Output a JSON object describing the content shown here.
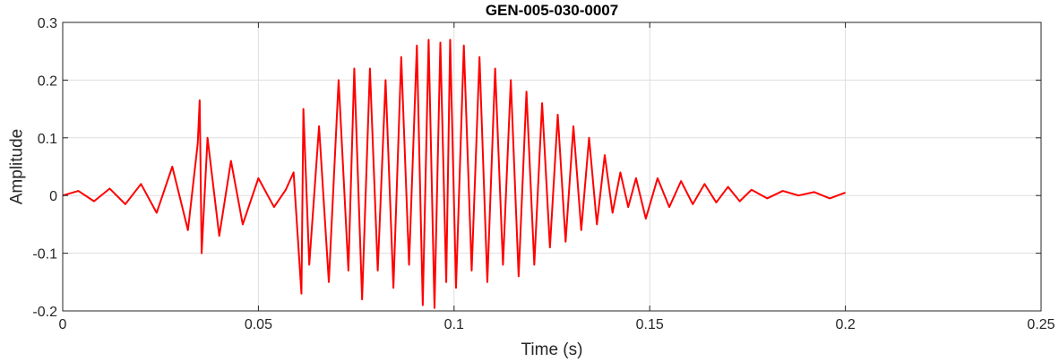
{
  "chart_data": {
    "type": "line",
    "title": "GEN-005-030-0007",
    "xlabel": "Time (s)",
    "ylabel": "Amplitude",
    "xlim": [
      0,
      0.25
    ],
    "ylim": [
      -0.2,
      0.3
    ],
    "xticks": [
      0,
      0.05,
      0.1,
      0.15,
      0.2,
      0.25
    ],
    "xtick_labels": [
      "0",
      "0.05",
      "0.1",
      "0.15",
      "0.2",
      "0.25"
    ],
    "yticks": [
      -0.2,
      -0.1,
      0,
      0.1,
      0.2,
      0.3
    ],
    "ytick_labels": [
      "-0.2",
      "-0.1",
      "0",
      "0.1",
      "0.2",
      "0.3"
    ],
    "grid": true,
    "legend": "none",
    "line_color": "#ff0000",
    "series": [
      {
        "x": [
          0,
          0.004,
          0.008,
          0.012,
          0.016,
          0.02,
          0.024,
          0.028,
          0.032,
          0.0345,
          0.035,
          0.0355,
          0.037,
          0.04,
          0.043,
          0.046,
          0.05,
          0.054,
          0.057,
          0.059,
          0.061,
          0.0615,
          0.063,
          0.0655,
          0.068,
          0.0705,
          0.073,
          0.0745,
          0.0765,
          0.0785,
          0.0805,
          0.0825,
          0.0845,
          0.0865,
          0.0885,
          0.0905,
          0.092,
          0.0935,
          0.095,
          0.0965,
          0.098,
          0.099,
          0.1005,
          0.1025,
          0.1045,
          0.1065,
          0.1085,
          0.1105,
          0.1125,
          0.1145,
          0.1165,
          0.1185,
          0.1205,
          0.1225,
          0.1245,
          0.1265,
          0.1285,
          0.1305,
          0.1325,
          0.1345,
          0.1365,
          0.1385,
          0.1405,
          0.1425,
          0.1445,
          0.1465,
          0.149,
          0.152,
          0.155,
          0.158,
          0.161,
          0.164,
          0.167,
          0.17,
          0.173,
          0.176,
          0.18,
          0.184,
          0.188,
          0.192,
          0.196,
          0.2
        ],
        "y": [
          0,
          0.008,
          -0.01,
          0.012,
          -0.015,
          0.02,
          -0.03,
          0.05,
          -0.06,
          0.09,
          0.165,
          -0.1,
          0.1,
          -0.07,
          0.06,
          -0.05,
          0.03,
          -0.02,
          0.01,
          0.04,
          -0.17,
          0.15,
          -0.12,
          0.12,
          -0.15,
          0.2,
          -0.13,
          0.22,
          -0.18,
          0.22,
          -0.13,
          0.2,
          -0.16,
          0.24,
          -0.12,
          0.26,
          -0.19,
          0.27,
          -0.195,
          0.265,
          -0.15,
          0.27,
          -0.16,
          0.26,
          -0.13,
          0.24,
          -0.15,
          0.22,
          -0.12,
          0.2,
          -0.14,
          0.18,
          -0.12,
          0.16,
          -0.09,
          0.14,
          -0.08,
          0.12,
          -0.06,
          0.1,
          -0.05,
          0.07,
          -0.03,
          0.04,
          -0.02,
          0.03,
          -0.04,
          0.03,
          -0.02,
          0.025,
          -0.015,
          0.02,
          -0.012,
          0.015,
          -0.01,
          0.01,
          -0.005,
          0.008,
          0,
          0.006,
          -0.005,
          0.005
        ]
      }
    ]
  }
}
